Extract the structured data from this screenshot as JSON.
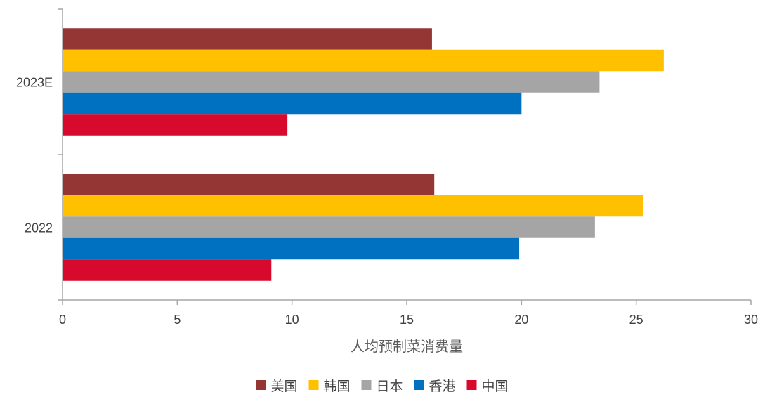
{
  "chart_data": {
    "type": "bar",
    "orientation": "horizontal",
    "categories": [
      "2023E",
      "2022"
    ],
    "series": [
      {
        "name": "美国",
        "color": "#943634",
        "values": [
          16.1,
          16.2
        ]
      },
      {
        "name": "韩国",
        "color": "#FFC000",
        "values": [
          26.2,
          25.3
        ]
      },
      {
        "name": "日本",
        "color": "#A5A5A5",
        "values": [
          23.4,
          23.2
        ]
      },
      {
        "name": "香港",
        "color": "#0070C0",
        "values": [
          20.0,
          19.9
        ]
      },
      {
        "name": "中国",
        "color": "#D7092C",
        "values": [
          9.8,
          9.1
        ]
      }
    ],
    "xlabel": "人均预制菜消费量",
    "ylabel": "",
    "xlim": [
      0,
      30
    ],
    "xticks": [
      0,
      5,
      10,
      15,
      20,
      25,
      30
    ],
    "grid": false,
    "legend": "bottom-center"
  }
}
